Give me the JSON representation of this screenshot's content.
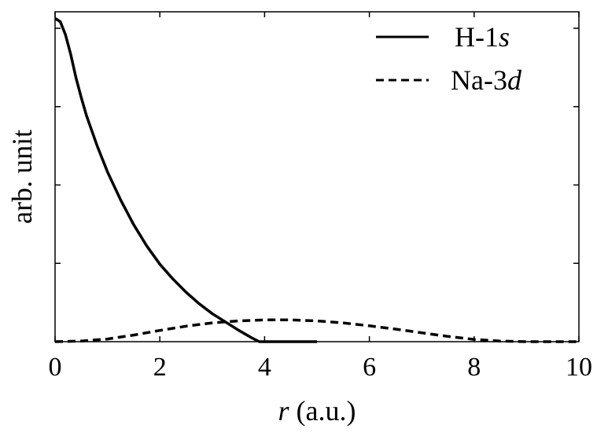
{
  "chart_data": {
    "type": "line",
    "xlabel_var": "r",
    "xlabel_rest": " (a.u.)",
    "ylabel": "arb. unit",
    "xlim": [
      0,
      10
    ],
    "ylim": [
      0,
      1
    ],
    "x_ticks": [
      0,
      2,
      4,
      6,
      8,
      10
    ],
    "x_tick_labels": [
      "0",
      "2",
      "4",
      "6",
      "8",
      "10"
    ],
    "y_tick_values": [
      0.2375,
      0.475,
      0.7125,
      0.95
    ],
    "grid": false,
    "legend": "top-right",
    "series": [
      {
        "name_base": "H-1",
        "name_italic": "s",
        "style": "solid",
        "points": [
          [
            0,
            0.98
          ],
          [
            0.1,
            0.97
          ],
          [
            0.2,
            0.93
          ],
          [
            0.3,
            0.87
          ],
          [
            0.4,
            0.8
          ],
          [
            0.5,
            0.74
          ],
          [
            0.6,
            0.685
          ],
          [
            0.8,
            0.595
          ],
          [
            1.0,
            0.515
          ],
          [
            1.25,
            0.43
          ],
          [
            1.5,
            0.355
          ],
          [
            1.75,
            0.29
          ],
          [
            2.0,
            0.235
          ],
          [
            2.25,
            0.19
          ],
          [
            2.5,
            0.15
          ],
          [
            2.75,
            0.115
          ],
          [
            3.0,
            0.085
          ],
          [
            3.25,
            0.06
          ],
          [
            3.5,
            0.035
          ],
          [
            3.75,
            0.012
          ],
          [
            3.9,
            0.0
          ],
          [
            5.0,
            0.0
          ]
        ]
      },
      {
        "name_base": "Na-3",
        "name_italic": "d",
        "style": "dashed",
        "points": [
          [
            0,
            0.0
          ],
          [
            0.5,
            0.002
          ],
          [
            1,
            0.008
          ],
          [
            1.5,
            0.02
          ],
          [
            2,
            0.034
          ],
          [
            2.5,
            0.047
          ],
          [
            3,
            0.057
          ],
          [
            3.5,
            0.063
          ],
          [
            4,
            0.066
          ],
          [
            4.5,
            0.066
          ],
          [
            5,
            0.063
          ],
          [
            5.5,
            0.057
          ],
          [
            6,
            0.048
          ],
          [
            6.5,
            0.038
          ],
          [
            7,
            0.027
          ],
          [
            7.5,
            0.016
          ],
          [
            8,
            0.007
          ],
          [
            8.5,
            0.002
          ],
          [
            9,
            0.0
          ],
          [
            10,
            0.0
          ]
        ]
      }
    ]
  }
}
